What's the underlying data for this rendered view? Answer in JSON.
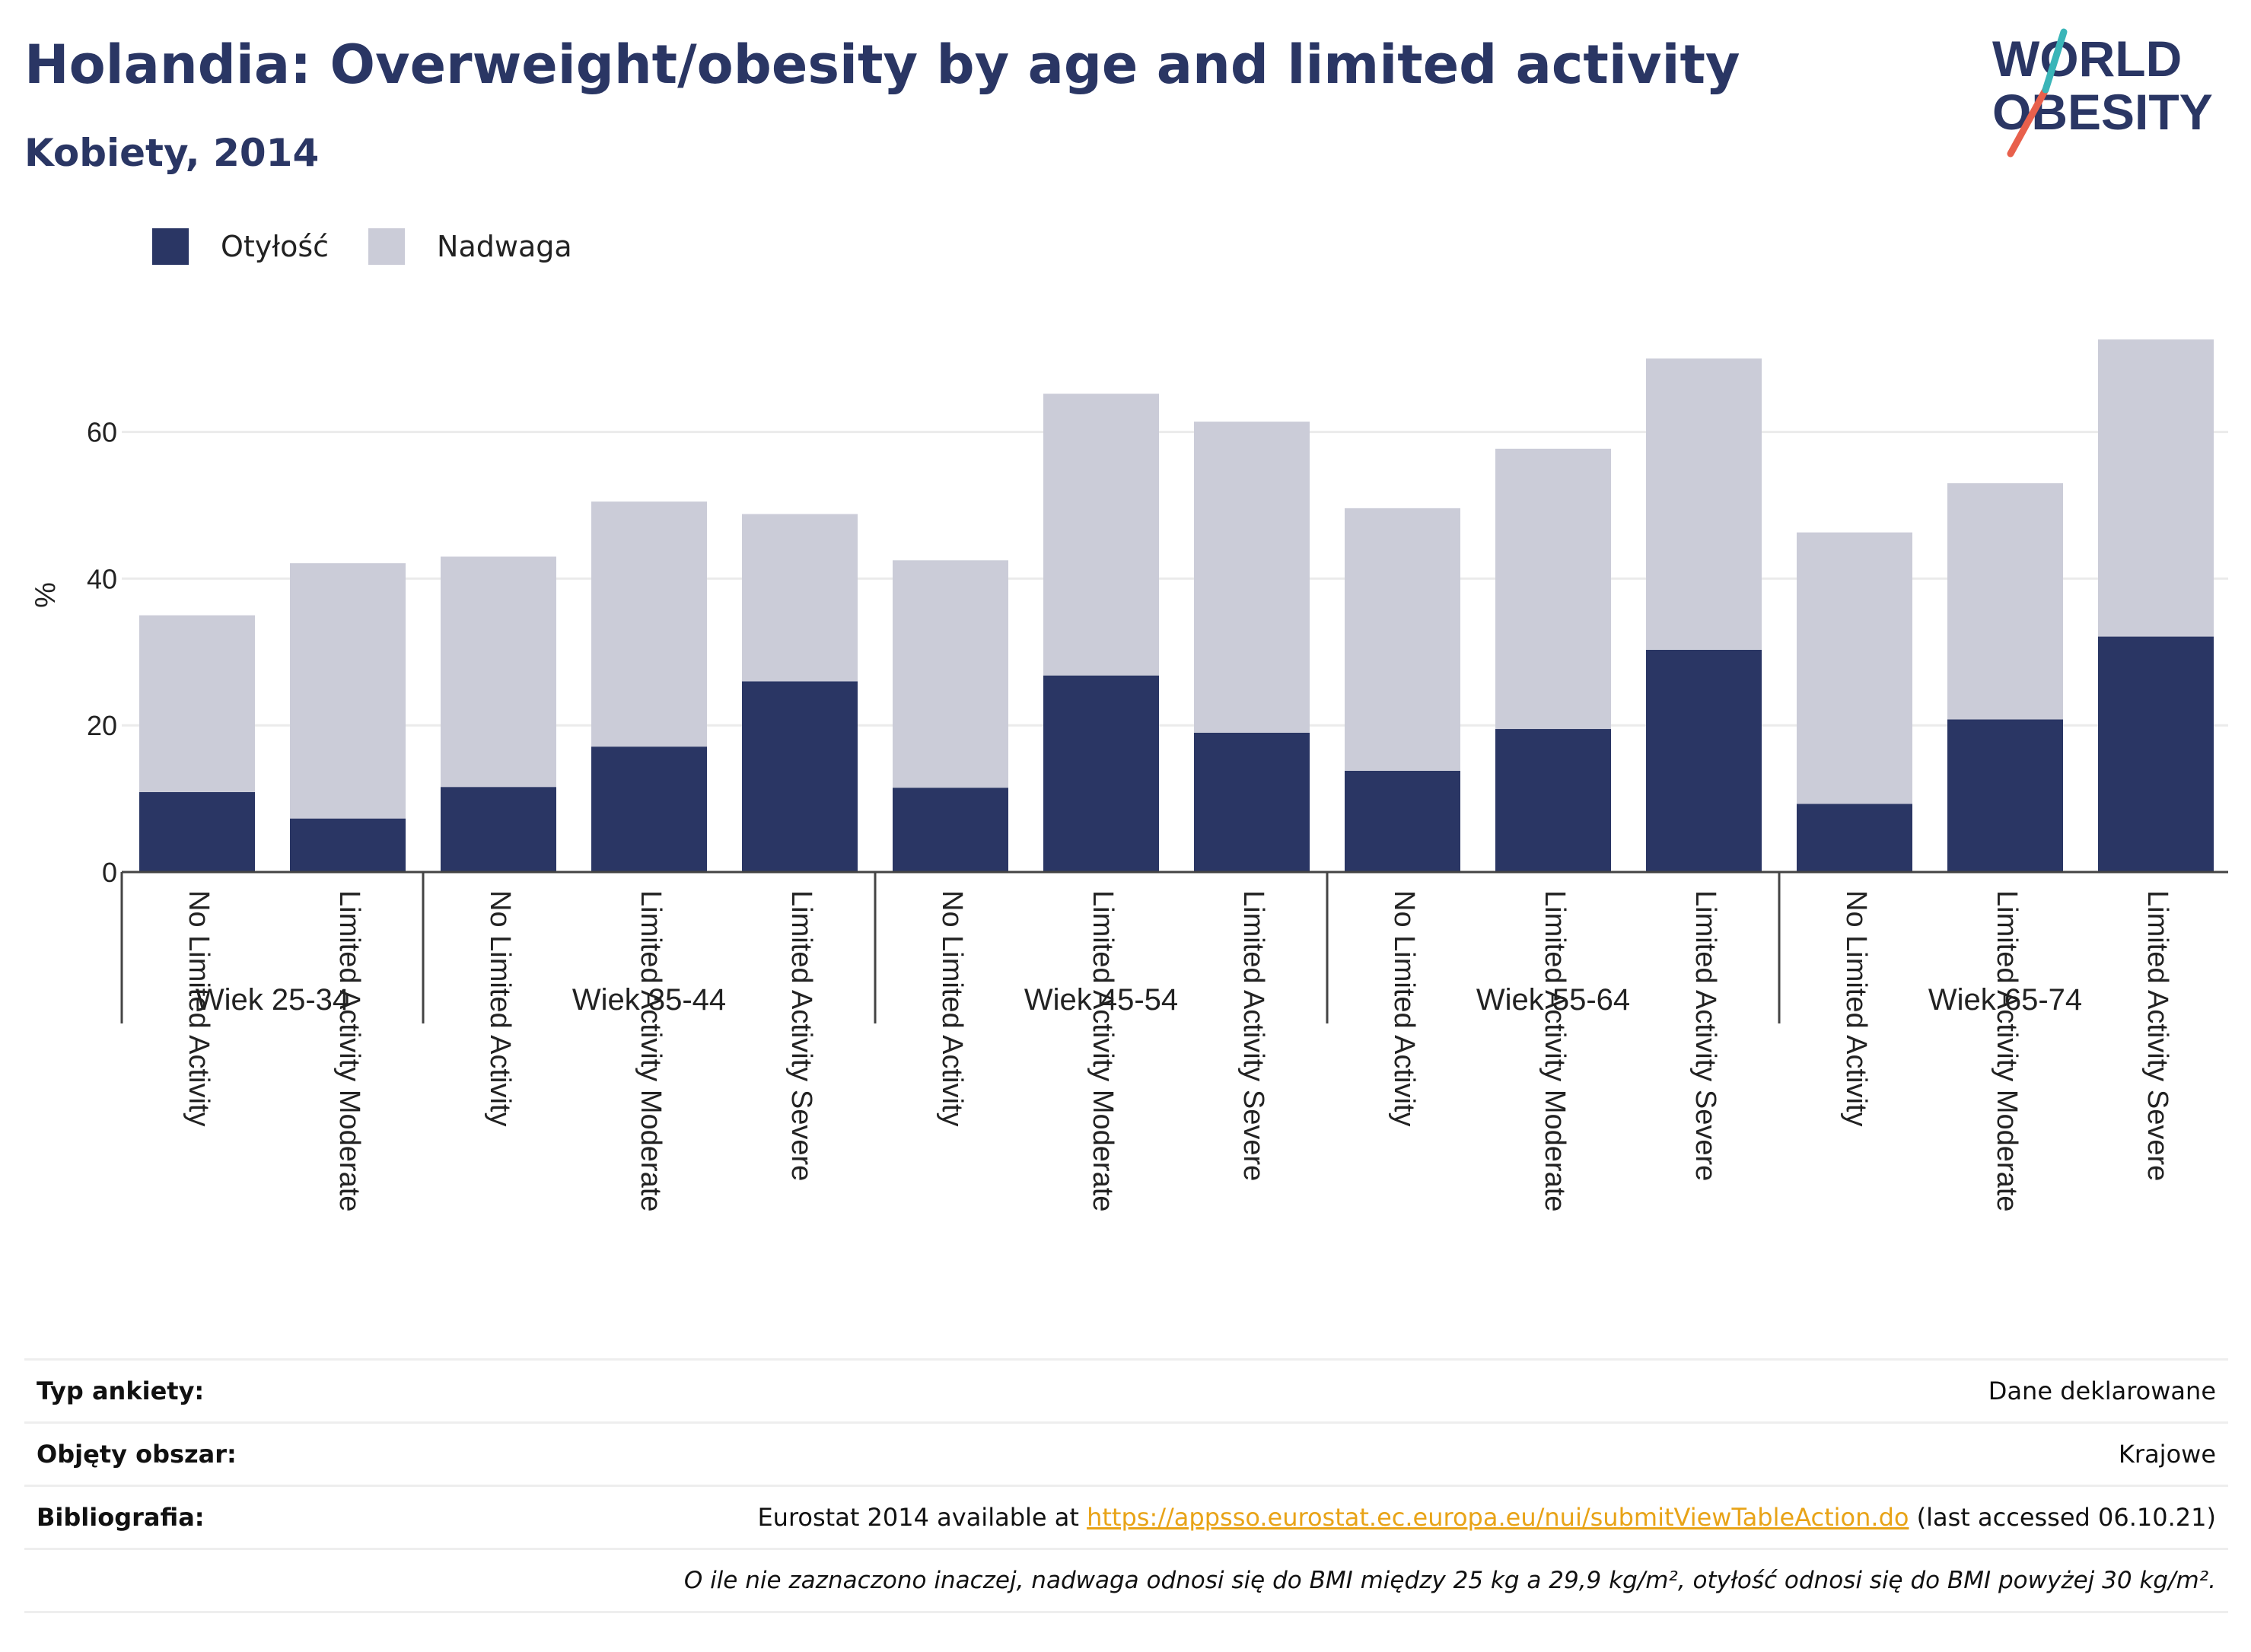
{
  "title": "Holandia: Overweight/obesity by age and limited activity",
  "subtitle": "Kobiety, 2014",
  "logo": {
    "line1": "WORLD",
    "line2": "OBESITY",
    "colors": {
      "text": "#2a3664",
      "slash_red": "#e8604c",
      "slash_teal": "#3ab5b8"
    }
  },
  "legend": [
    {
      "label": "Otyłość",
      "color": "#2a3664"
    },
    {
      "label": "Nadwaga",
      "color": "#cbccd8"
    }
  ],
  "chart_data": {
    "type": "bar",
    "stacked": true,
    "ylabel": "%",
    "ylim": [
      0,
      74
    ],
    "yticks": [
      0,
      20,
      40,
      60
    ],
    "grid": true,
    "legend_position": "top-left",
    "groups": [
      {
        "label": "Wiek 25-34",
        "categories": [
          "No Limited Activity",
          "Limited Activity Moderate"
        ]
      },
      {
        "label": "Wiek 35-44",
        "categories": [
          "No Limited Activity",
          "Limited Activity Moderate",
          "Limited Activity Severe"
        ]
      },
      {
        "label": "Wiek 45-54",
        "categories": [
          "No Limited Activity",
          "Limited Activity Moderate",
          "Limited Activity Severe"
        ]
      },
      {
        "label": "Wiek 55-64",
        "categories": [
          "No Limited Activity",
          "Limited Activity Moderate",
          "Limited Activity Severe"
        ]
      },
      {
        "label": "Wiek 65-74",
        "categories": [
          "No Limited Activity",
          "Limited Activity Moderate",
          "Limited Activity Severe"
        ]
      }
    ],
    "series": [
      {
        "name": "Otyłość",
        "color": "#2a3664",
        "values": [
          10.9,
          7.3,
          11.6,
          17.1,
          26.0,
          11.5,
          26.8,
          19.0,
          13.8,
          19.5,
          30.3,
          9.3,
          20.8,
          32.1
        ]
      },
      {
        "name": "Nadwaga",
        "color": "#cbccd8",
        "values": [
          24.1,
          34.8,
          31.4,
          33.4,
          22.8,
          31.0,
          38.4,
          42.4,
          35.8,
          38.2,
          39.7,
          37.0,
          32.2,
          40.5
        ]
      }
    ]
  },
  "footer": {
    "survey_label": "Typ ankiety:",
    "survey_value": "Dane deklarowane",
    "area_label": "Objęty obszar:",
    "area_value": "Krajowe",
    "bib_label": "Bibliografia:",
    "bib_prefix": "Eurostat 2014 available at ",
    "bib_link": "https://appsso.eurostat.ec.europa.eu/nui/submitViewTableAction.do",
    "bib_suffix": " (last accessed 06.10.21)",
    "note": "O ile nie zaznaczono inaczej, nadwaga odnosi się do BMI między 25 kg a 29,9 kg/m², otyłość odnosi się do BMI powyżej 30 kg/m²."
  }
}
